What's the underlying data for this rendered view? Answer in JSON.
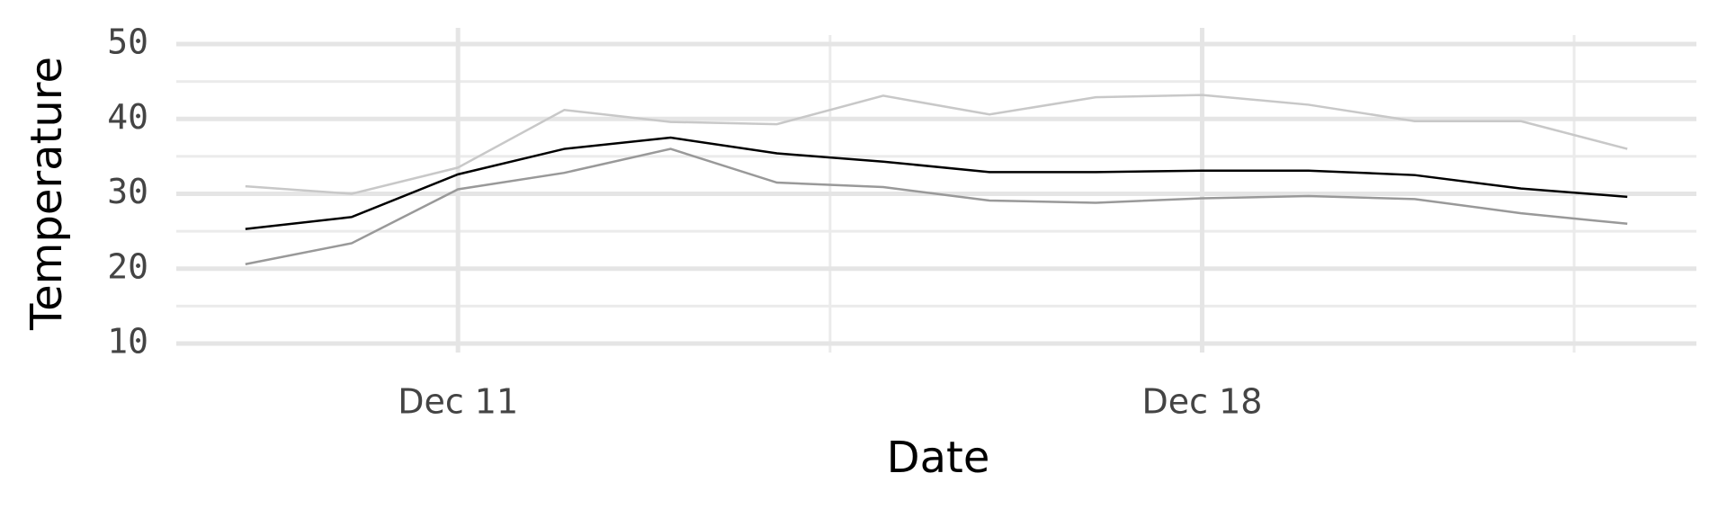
{
  "chart_data": {
    "type": "line",
    "x": [
      "Dec 9",
      "Dec 10",
      "Dec 11",
      "Dec 12",
      "Dec 13",
      "Dec 14",
      "Dec 15",
      "Dec 16",
      "Dec 17",
      "Dec 18",
      "Dec 19",
      "Dec 20",
      "Dec 21",
      "Dec 22"
    ],
    "series": [
      {
        "color": "#c8c8c8",
        "values": [
          31.0,
          30.0,
          33.5,
          41.2,
          39.6,
          39.3,
          43.1,
          40.6,
          42.9,
          43.2,
          41.9,
          39.7,
          39.7,
          36.0
        ]
      },
      {
        "color": "#999999",
        "values": [
          20.6,
          23.4,
          30.6,
          32.8,
          36.0,
          31.5,
          30.9,
          29.1,
          28.8,
          29.4,
          29.7,
          29.3,
          27.4,
          26.0
        ]
      },
      {
        "color": "#000000",
        "values": [
          25.3,
          26.9,
          32.6,
          36.0,
          37.5,
          35.4,
          34.3,
          32.9,
          32.9,
          33.1,
          33.1,
          32.5,
          30.7,
          29.6
        ]
      }
    ],
    "xlabel": "Date",
    "ylabel": "Temperature",
    "xticks": [
      "Dec 11",
      "Dec 18"
    ],
    "ylim": [
      10,
      50
    ],
    "yticks": [
      10,
      20,
      30,
      40,
      50
    ],
    "grid": true
  }
}
